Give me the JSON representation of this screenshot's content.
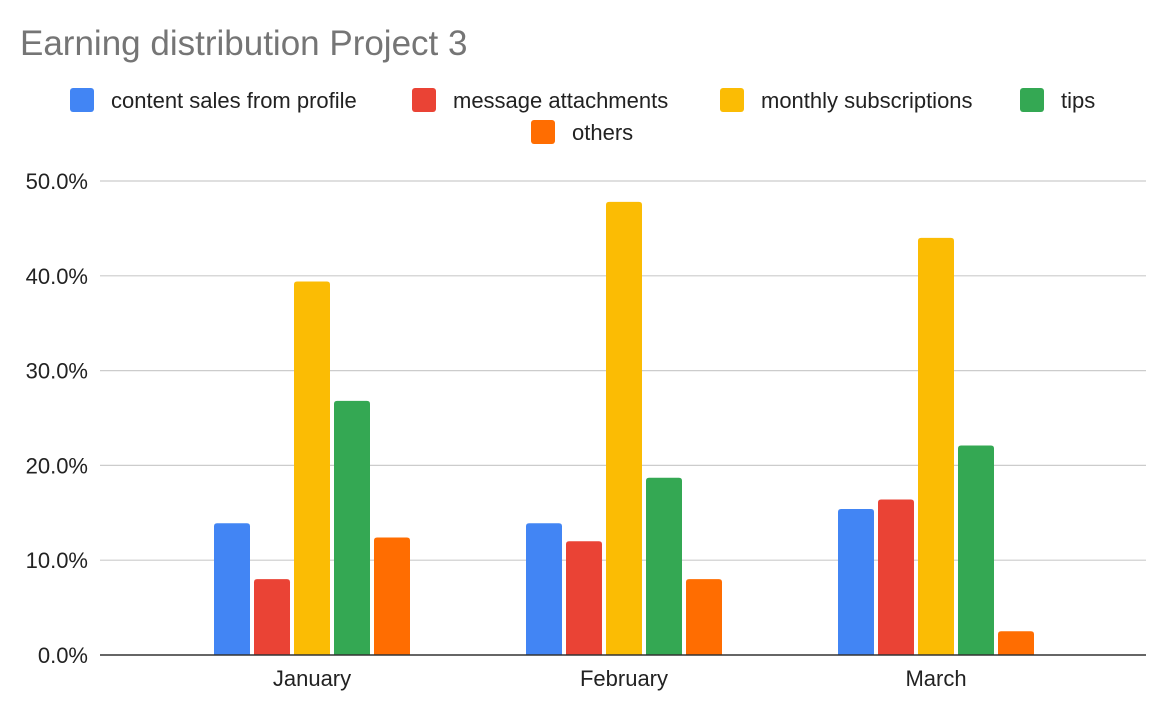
{
  "chart_data": {
    "type": "bar",
    "title": "Earning distribution Project 3",
    "xlabel": "",
    "ylabel": "",
    "categories": [
      "January",
      "February",
      "March"
    ],
    "series": [
      {
        "name": "content sales from profile",
        "color": "#4285F4",
        "values": [
          13.9,
          13.9,
          15.4
        ]
      },
      {
        "name": "message attachments",
        "color": "#EA4335",
        "values": [
          8.0,
          12.0,
          16.4
        ]
      },
      {
        "name": "monthly subscriptions",
        "color": "#FBBC04",
        "values": [
          39.4,
          47.8,
          44.0
        ]
      },
      {
        "name": "tips",
        "color": "#34A853",
        "values": [
          26.8,
          18.7,
          22.1
        ]
      },
      {
        "name": "others",
        "color": "#FF6D01",
        "values": [
          12.4,
          8.0,
          2.5
        ]
      }
    ],
    "ylim": [
      0,
      50
    ],
    "yticks": [
      "0.0%",
      "10.0%",
      "20.0%",
      "30.0%",
      "40.0%",
      "50.0%"
    ],
    "grid": true,
    "legend_position": "top"
  }
}
